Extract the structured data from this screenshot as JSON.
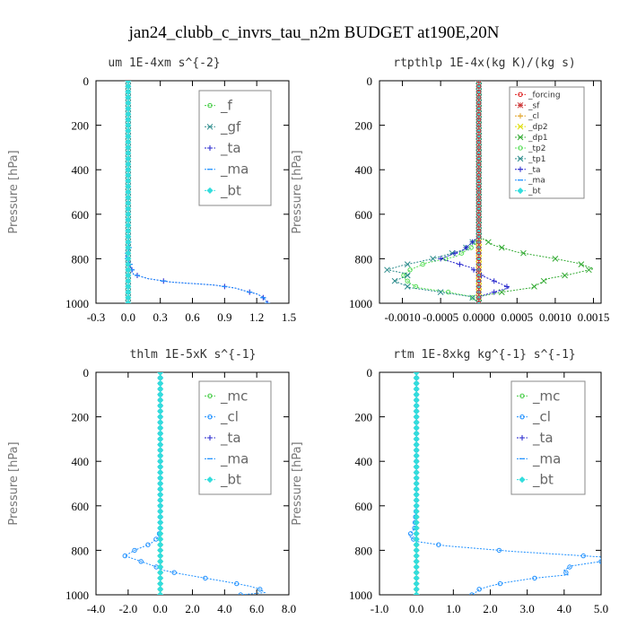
{
  "title": "jan24_clubb_c_invrs_tau_n2m  BUDGET at190E,20N",
  "chart_data": [
    {
      "type": "line",
      "title": "um  1E-4xm s^{-2}",
      "ylabel": "Pressure [hPa]",
      "xlim": [
        -0.3,
        1.5
      ],
      "ylim": [
        0,
        1000
      ],
      "xticks": [
        "-0.3",
        "0.0",
        "0.3",
        "0.6",
        "0.9",
        "1.2",
        "1.5"
      ],
      "xtick_values": [
        -0.3,
        0.0,
        0.3,
        0.6,
        0.9,
        1.2,
        1.5
      ],
      "yticks": [
        "0",
        "200",
        "400",
        "600",
        "800",
        "1000"
      ],
      "ytick_values": [
        0,
        200,
        400,
        600,
        800,
        1000
      ],
      "legend_style": "big",
      "series": [
        {
          "name": "_f",
          "color": "#44cc44",
          "marker": "circle",
          "pressure": [
            0,
            100,
            200,
            300,
            400,
            500,
            600,
            700,
            800,
            900,
            1000
          ],
          "values": [
            0,
            0,
            0,
            0,
            0,
            0,
            0,
            0,
            0,
            0,
            0
          ]
        },
        {
          "name": "_gf",
          "color": "#2a8a8a",
          "marker": "x",
          "pressure": [
            0,
            100,
            200,
            300,
            400,
            500,
            600,
            700,
            800,
            900,
            1000
          ],
          "values": [
            0,
            0,
            0,
            0,
            0,
            0,
            0,
            0,
            0,
            0,
            0
          ]
        },
        {
          "name": "_ta",
          "color": "#2222cc",
          "marker": "plus",
          "pressure": [
            0,
            200,
            400,
            600,
            700,
            760,
            790,
            805,
            830,
            870,
            890,
            905,
            918,
            932,
            946,
            958,
            970,
            985,
            1000
          ],
          "values": [
            0,
            0,
            0,
            0,
            0,
            0.01,
            -0.02,
            0.0,
            0.02,
            0.05,
            0.19,
            0.4,
            0.8,
            1.0,
            1.1,
            1.2,
            1.25,
            1.28,
            1.3
          ]
        },
        {
          "name": "_ma",
          "color": "#1e90ff",
          "marker": "dash",
          "pressure": [
            0,
            200,
            400,
            600,
            700,
            760,
            790,
            805,
            830,
            870,
            890,
            905,
            918,
            932,
            946,
            958,
            970,
            985,
            1000
          ],
          "values": [
            0,
            0,
            0,
            0,
            0,
            0.01,
            -0.02,
            0.0,
            0.02,
            0.05,
            0.19,
            0.4,
            0.8,
            1.0,
            1.1,
            1.2,
            1.25,
            1.28,
            1.3
          ]
        },
        {
          "name": "_bt",
          "color": "#33dddd",
          "marker": "diamond",
          "pressure": [
            0,
            100,
            200,
            300,
            400,
            500,
            600,
            700,
            800,
            900,
            1000
          ],
          "values": [
            0,
            0,
            0,
            0,
            0,
            0,
            0,
            0,
            0,
            0,
            0
          ]
        }
      ]
    },
    {
      "type": "line",
      "title": "rtpthlp  1E-4x(kg K)/(kg s)",
      "ylabel": "Pressure [hPa]",
      "xlim": [
        -0.0013,
        0.0016
      ],
      "ylim": [
        0,
        1000
      ],
      "xticks": [
        "-0.0010",
        "-0.0005",
        "0.0000",
        "0.0005",
        "0.0010",
        "0.0015"
      ],
      "xtick_values": [
        -0.001,
        -0.0005,
        0.0,
        0.0005,
        0.001,
        0.0015
      ],
      "yticks": [
        "0",
        "200",
        "400",
        "600",
        "800",
        "1000"
      ],
      "ytick_values": [
        0,
        200,
        400,
        600,
        800,
        1000
      ],
      "legend_style": "small",
      "series": [
        {
          "name": "_forcing",
          "color": "#dd2222",
          "marker": "circle",
          "pressure": [
            0,
            100,
            200,
            300,
            400,
            500,
            600,
            700,
            800,
            900,
            1000
          ],
          "values": [
            0,
            0,
            0,
            0,
            0,
            0,
            0,
            0,
            0,
            0,
            0
          ]
        },
        {
          "name": "_sf",
          "color": "#cc3333",
          "marker": "star",
          "pressure": [
            0,
            200,
            400,
            600,
            800,
            1000
          ],
          "values": [
            0,
            0,
            0,
            0,
            0,
            0
          ]
        },
        {
          "name": "_cl",
          "color": "#e0a020",
          "marker": "plus",
          "pressure": [
            0,
            200,
            400,
            600,
            800,
            1000
          ],
          "values": [
            0,
            0,
            0,
            0,
            0,
            0
          ]
        },
        {
          "name": "_dp2",
          "color": "#dddd00",
          "marker": "x",
          "pressure": [
            0,
            200,
            400,
            600,
            800,
            1000
          ],
          "values": [
            0,
            0,
            0,
            0,
            0,
            0
          ]
        },
        {
          "name": "_dp1",
          "color": "#33aa33",
          "marker": "x",
          "pressure": [
            0,
            700,
            740,
            770,
            800,
            820,
            845,
            870,
            890,
            910,
            930,
            950,
            970,
            1000
          ],
          "values": [
            0,
            0,
            0.0002,
            0.0005,
            0.001,
            0.0013,
            0.0015,
            0.0012,
            0.0009,
            0.0008,
            0.0007,
            0.0003,
            0.0,
            0
          ]
        },
        {
          "name": "_tp2",
          "color": "#55dd55",
          "marker": "circle",
          "pressure": [
            0,
            700,
            750,
            790,
            820,
            850,
            880,
            910,
            930,
            950,
            970,
            1000
          ],
          "values": [
            0,
            0,
            -0.0001,
            -0.0003,
            -0.0007,
            -0.0009,
            -0.001,
            -0.0009,
            -0.0008,
            -0.0004,
            -0.0001,
            0
          ]
        },
        {
          "name": "_tp1",
          "color": "#2a8a8a",
          "marker": "x",
          "pressure": [
            0,
            700,
            760,
            800,
            830,
            850,
            870,
            900,
            930,
            950,
            970,
            1000
          ],
          "values": [
            0,
            0,
            -0.0002,
            -0.0006,
            -0.001,
            -0.0012,
            -0.0009,
            -0.0011,
            -0.0009,
            -0.0005,
            -0.0001,
            0
          ]
        },
        {
          "name": "_ta",
          "color": "#2222cc",
          "marker": "plus",
          "pressure": [
            0,
            700,
            760,
            800,
            840,
            870,
            900,
            930,
            950,
            970,
            1000
          ],
          "values": [
            0,
            0,
            -0.0002,
            -0.0005,
            -0.0001,
            0.0,
            0.0002,
            0.0004,
            0.0002,
            0.0,
            0
          ]
        },
        {
          "name": "_ma",
          "color": "#1e90ff",
          "marker": "dash",
          "pressure": [
            0,
            200,
            400,
            600,
            800,
            1000
          ],
          "values": [
            0,
            0,
            0,
            0,
            0,
            0
          ]
        },
        {
          "name": "_bt",
          "color": "#33dddd",
          "marker": "diamond",
          "pressure": [
            0,
            200,
            400,
            600,
            800,
            1000
          ],
          "values": [
            0,
            0,
            0,
            0,
            0,
            0
          ]
        }
      ]
    },
    {
      "type": "line",
      "title": "thlm  1E-5xK s^{-1}",
      "ylabel": "Pressure [hPa]",
      "xlim": [
        -4.0,
        8.0
      ],
      "ylim": [
        0,
        1000
      ],
      "xticks": [
        "-4.0",
        "-2.0",
        "0.0",
        "2.0",
        "4.0",
        "6.0",
        "8.0"
      ],
      "xtick_values": [
        -4,
        -2,
        0,
        2,
        4,
        6,
        8
      ],
      "yticks": [
        "0",
        "200",
        "400",
        "600",
        "800",
        "1000"
      ],
      "ytick_values": [
        0,
        200,
        400,
        600,
        800,
        1000
      ],
      "legend_style": "big",
      "series": [
        {
          "name": "_mc",
          "color": "#44cc44",
          "marker": "circle",
          "pressure": [
            0,
            100,
            200,
            300,
            400,
            500,
            600,
            700,
            800,
            900,
            1000
          ],
          "values": [
            0,
            0,
            0,
            0,
            0,
            0,
            0,
            0,
            0,
            0,
            0
          ]
        },
        {
          "name": "_cl",
          "color": "#1e90ff",
          "marker": "circle",
          "pressure": [
            0,
            200,
            400,
            600,
            700,
            740,
            770,
            800,
            825,
            850,
            870,
            890,
            905,
            920,
            940,
            960,
            975,
            990,
            1000
          ],
          "values": [
            0,
            0,
            0,
            0,
            0,
            -0.1,
            -0.6,
            -1.6,
            -2.2,
            -1.2,
            -0.4,
            0.2,
            1.2,
            2.4,
            4.0,
            5.5,
            6.2,
            6.5,
            5.0
          ]
        },
        {
          "name": "_ta",
          "color": "#2222cc",
          "marker": "plus",
          "pressure": [
            0,
            200,
            400,
            600,
            800,
            900,
            1000
          ],
          "values": [
            0,
            0,
            0,
            0,
            0,
            0,
            0
          ]
        },
        {
          "name": "_ma",
          "color": "#1e90ff",
          "marker": "dash",
          "pressure": [
            0,
            200,
            400,
            600,
            800,
            1000
          ],
          "values": [
            0,
            0,
            0,
            0,
            0,
            0
          ]
        },
        {
          "name": "_bt",
          "color": "#33dddd",
          "marker": "diamond",
          "pressure": [
            0,
            200,
            400,
            600,
            800,
            1000
          ],
          "values": [
            0,
            0,
            0,
            0,
            0,
            0
          ]
        }
      ]
    },
    {
      "type": "line",
      "title": "rtm  1E-8xkg kg^{-1} s^{-1}",
      "ylabel": "Pressure [hPa]",
      "xlim": [
        -1.0,
        5.0
      ],
      "ylim": [
        0,
        1000
      ],
      "xticks": [
        "-1.0",
        "0.0",
        "1.0",
        "2.0",
        "3.0",
        "4.0",
        "5.0"
      ],
      "xtick_values": [
        -1,
        0,
        1,
        2,
        3,
        4,
        5
      ],
      "yticks": [
        "0",
        "200",
        "400",
        "600",
        "800",
        "1000"
      ],
      "ytick_values": [
        0,
        200,
        400,
        600,
        800,
        1000
      ],
      "legend_style": "big",
      "series": [
        {
          "name": "_mc",
          "color": "#44cc44",
          "marker": "circle",
          "pressure": [
            0,
            100,
            200,
            300,
            400,
            500,
            600,
            700,
            800,
            900,
            1000
          ],
          "values": [
            0,
            0,
            0,
            0,
            0,
            0,
            0,
            0,
            0,
            0,
            0
          ]
        },
        {
          "name": "_cl",
          "color": "#1e90ff",
          "marker": "circle",
          "pressure": [
            0,
            200,
            400,
            600,
            700,
            735,
            760,
            780,
            805,
            830,
            850,
            870,
            890,
            910,
            925,
            945,
            960,
            975,
            990,
            1000
          ],
          "values": [
            0,
            0,
            0,
            0,
            -0.05,
            -0.2,
            0.0,
            0.8,
            2.6,
            5.0,
            5.0,
            4.2,
            4.0,
            4.1,
            3.2,
            2.4,
            2.0,
            1.7,
            1.6,
            1.5
          ]
        },
        {
          "name": "_ta",
          "color": "#2222cc",
          "marker": "plus",
          "pressure": [
            0,
            200,
            400,
            600,
            800,
            900,
            1000
          ],
          "values": [
            0,
            0,
            0,
            0,
            0,
            0,
            0
          ]
        },
        {
          "name": "_ma",
          "color": "#1e90ff",
          "marker": "dash",
          "pressure": [
            0,
            200,
            400,
            600,
            800,
            1000
          ],
          "values": [
            0,
            0,
            0,
            0,
            0,
            0
          ]
        },
        {
          "name": "_bt",
          "color": "#33dddd",
          "marker": "diamond",
          "pressure": [
            0,
            200,
            400,
            600,
            800,
            1000
          ],
          "values": [
            0,
            0,
            0,
            0,
            0,
            0
          ]
        }
      ]
    }
  ]
}
